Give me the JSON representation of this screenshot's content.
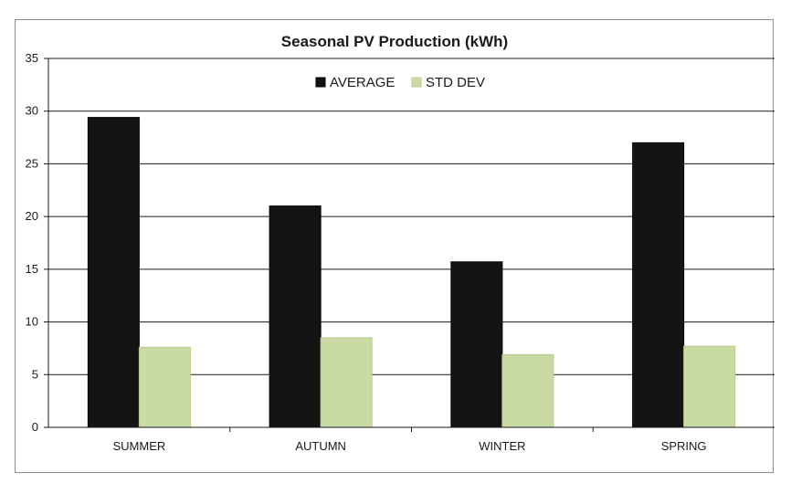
{
  "chart_data": {
    "type": "bar",
    "title": "Seasonal PV Production (kWh)",
    "categories": [
      "SUMMER",
      "AUTUMN",
      "WINTER",
      "SPRING"
    ],
    "series": [
      {
        "name": "AVERAGE",
        "color": "#141414",
        "values": [
          29.4,
          21.0,
          15.7,
          27.0
        ]
      },
      {
        "name": "STD DEV",
        "color": "#c9dba2",
        "values": [
          7.6,
          8.5,
          6.9,
          7.7
        ]
      }
    ],
    "xlabel": "",
    "ylabel": "",
    "ylim": [
      0,
      35
    ],
    "yticks": [
      0,
      5,
      10,
      15,
      20,
      25,
      30,
      35
    ],
    "grid": true,
    "legend": "top-center"
  }
}
